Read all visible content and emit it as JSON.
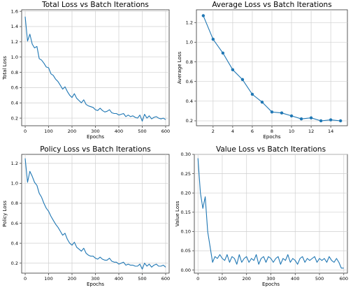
{
  "chart_data": [
    {
      "type": "line",
      "title": "Total Loss vs Batch Iterations",
      "xlabel": "Epochs",
      "ylabel": "Total Loss",
      "xlim": [
        -15,
        615
      ],
      "ylim": [
        0.1,
        1.62
      ],
      "xticks": [
        0,
        100,
        200,
        300,
        400,
        500,
        600
      ],
      "yticks": [
        0.2,
        0.4,
        0.6,
        0.8,
        1.0,
        1.2,
        1.4,
        1.6
      ],
      "ytick_labels": [
        "0.2",
        "0.4",
        "0.6",
        "0.8",
        "1.0",
        "1.2",
        "1.4",
        "1.6"
      ],
      "grid": true,
      "markers": false,
      "series": [
        {
          "x": [
            0,
            10,
            20,
            30,
            40,
            50,
            60,
            70,
            80,
            90,
            100,
            110,
            120,
            130,
            140,
            150,
            160,
            170,
            180,
            190,
            200,
            210,
            220,
            230,
            240,
            250,
            260,
            270,
            280,
            290,
            300,
            310,
            320,
            330,
            340,
            350,
            360,
            370,
            380,
            390,
            400,
            410,
            420,
            430,
            440,
            450,
            460,
            470,
            480,
            490,
            500,
            510,
            520,
            530,
            540,
            550,
            560,
            570,
            580,
            590,
            600
          ],
          "values": [
            1.53,
            1.21,
            1.3,
            1.17,
            1.12,
            1.14,
            0.98,
            0.96,
            0.92,
            0.87,
            0.86,
            0.78,
            0.76,
            0.71,
            0.68,
            0.63,
            0.58,
            0.61,
            0.55,
            0.5,
            0.47,
            0.52,
            0.46,
            0.43,
            0.4,
            0.44,
            0.38,
            0.36,
            0.35,
            0.34,
            0.31,
            0.3,
            0.33,
            0.3,
            0.28,
            0.29,
            0.31,
            0.27,
            0.26,
            0.26,
            0.24,
            0.25,
            0.26,
            0.22,
            0.24,
            0.22,
            0.23,
            0.21,
            0.2,
            0.24,
            0.16,
            0.25,
            0.2,
            0.23,
            0.19,
            0.21,
            0.22,
            0.2,
            0.19,
            0.2,
            0.18
          ],
          "color": "#1f77b4"
        }
      ]
    },
    {
      "type": "line",
      "title": "Average Loss vs Batch Iterations",
      "xlabel": "Epochs",
      "ylabel": "Average Loss",
      "xlim": [
        0.3,
        15.7
      ],
      "ylim": [
        0.15,
        1.33
      ],
      "xticks": [
        2,
        4,
        6,
        8,
        10,
        12,
        14
      ],
      "yticks": [
        0.2,
        0.4,
        0.6,
        0.8,
        1.0,
        1.2
      ],
      "ytick_labels": [
        "0.2",
        "0.4",
        "0.6",
        "0.8",
        "1.0",
        "1.2"
      ],
      "grid": true,
      "markers": true,
      "series": [
        {
          "x": [
            1,
            2,
            3,
            4,
            5,
            6,
            7,
            8,
            9,
            10,
            11,
            12,
            13,
            14,
            15
          ],
          "values": [
            1.27,
            1.03,
            0.89,
            0.72,
            0.62,
            0.47,
            0.39,
            0.29,
            0.28,
            0.25,
            0.22,
            0.23,
            0.2,
            0.21,
            0.2
          ],
          "color": "#1f77b4"
        }
      ]
    },
    {
      "type": "line",
      "title": "Policy Loss vs Batch Iterations",
      "xlabel": "Epochs",
      "ylabel": "Policy Loss",
      "xlim": [
        -15,
        615
      ],
      "ylim": [
        0.1,
        1.29
      ],
      "xticks": [
        0,
        100,
        200,
        300,
        400,
        500,
        600
      ],
      "yticks": [
        0.2,
        0.4,
        0.6,
        0.8,
        1.0,
        1.2
      ],
      "ytick_labels": [
        "0.2",
        "0.4",
        "0.6",
        "0.8",
        "1.0",
        "1.2"
      ],
      "grid": true,
      "markers": false,
      "series": [
        {
          "x": [
            0,
            10,
            20,
            30,
            40,
            50,
            60,
            70,
            80,
            90,
            100,
            110,
            120,
            130,
            140,
            150,
            160,
            170,
            180,
            190,
            200,
            210,
            220,
            230,
            240,
            250,
            260,
            270,
            280,
            290,
            300,
            310,
            320,
            330,
            340,
            350,
            360,
            370,
            380,
            390,
            400,
            410,
            420,
            430,
            440,
            450,
            460,
            470,
            480,
            490,
            500,
            510,
            520,
            530,
            540,
            550,
            560,
            570,
            580,
            590,
            600
          ],
          "values": [
            1.25,
            1.01,
            1.12,
            1.07,
            1.01,
            0.98,
            0.9,
            0.86,
            0.8,
            0.75,
            0.72,
            0.67,
            0.63,
            0.59,
            0.56,
            0.52,
            0.48,
            0.5,
            0.44,
            0.4,
            0.38,
            0.41,
            0.36,
            0.34,
            0.32,
            0.35,
            0.3,
            0.28,
            0.27,
            0.27,
            0.25,
            0.24,
            0.26,
            0.24,
            0.23,
            0.23,
            0.25,
            0.22,
            0.21,
            0.21,
            0.19,
            0.2,
            0.21,
            0.18,
            0.19,
            0.18,
            0.18,
            0.17,
            0.17,
            0.19,
            0.14,
            0.2,
            0.17,
            0.19,
            0.16,
            0.18,
            0.19,
            0.17,
            0.17,
            0.18,
            0.16
          ],
          "color": "#1f77b4"
        }
      ]
    },
    {
      "type": "line",
      "title": "Value Loss vs Batch Iterations",
      "xlabel": "Epochs",
      "ylabel": "Value Loss",
      "xlim": [
        -15,
        615
      ],
      "ylim": [
        -0.008,
        0.3
      ],
      "xticks": [
        0,
        100,
        200,
        300,
        400,
        500,
        600
      ],
      "yticks": [
        0.0,
        0.05,
        0.1,
        0.15,
        0.2,
        0.25,
        0.3
      ],
      "ytick_labels": [
        "0.00",
        "0.05",
        "0.10",
        "0.15",
        "0.20",
        "0.25",
        "0.30"
      ],
      "grid": true,
      "markers": false,
      "series": [
        {
          "x": [
            0,
            10,
            20,
            30,
            40,
            50,
            60,
            70,
            80,
            90,
            100,
            110,
            120,
            130,
            140,
            150,
            160,
            170,
            180,
            190,
            200,
            210,
            220,
            230,
            240,
            250,
            260,
            270,
            280,
            290,
            300,
            310,
            320,
            330,
            340,
            350,
            360,
            370,
            380,
            390,
            400,
            410,
            420,
            430,
            440,
            450,
            460,
            470,
            480,
            490,
            500,
            510,
            520,
            530,
            540,
            550,
            560,
            570,
            580,
            590,
            600
          ],
          "values": [
            0.29,
            0.2,
            0.16,
            0.19,
            0.1,
            0.06,
            0.02,
            0.035,
            0.03,
            0.04,
            0.03,
            0.025,
            0.04,
            0.02,
            0.035,
            0.03,
            0.015,
            0.04,
            0.02,
            0.03,
            0.035,
            0.02,
            0.03,
            0.025,
            0.04,
            0.015,
            0.03,
            0.035,
            0.02,
            0.035,
            0.03,
            0.02,
            0.03,
            0.035,
            0.015,
            0.03,
            0.025,
            0.04,
            0.02,
            0.03,
            0.025,
            0.015,
            0.03,
            0.035,
            0.02,
            0.03,
            0.025,
            0.03,
            0.035,
            0.02,
            0.03,
            0.025,
            0.03,
            0.02,
            0.035,
            0.025,
            0.02,
            0.03,
            0.02,
            0.005,
            0.005
          ],
          "color": "#1f77b4"
        }
      ]
    }
  ]
}
